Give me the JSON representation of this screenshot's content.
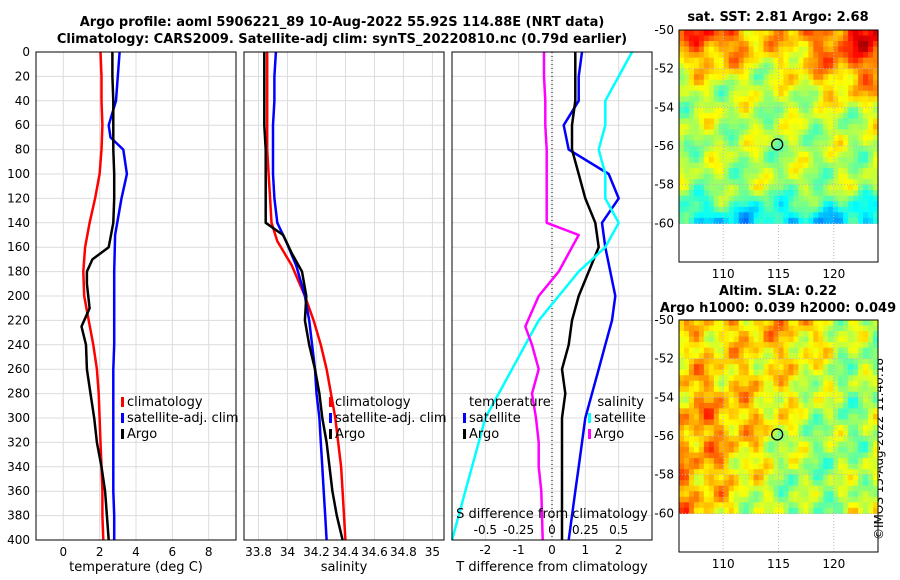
{
  "titles": {
    "line1": "Argo profile: aoml 5906221_89 10-Aug-2022 55.92S 114.88E (NRT data)",
    "line2": "Climatology: CARS2009. Satellite-adj clim: synTS_20220810.nc (0.79d earlier)",
    "sst": "sat. SST: 2.81 Argo: 2.68",
    "sla1": "Altim. SLA: 0.22",
    "sla2": "Argo h1000: 0.039 h2000: 0.049"
  },
  "watermark": "©IMOS 15-Aug-2022 11:40:18",
  "colors": {
    "climatology": "#ff0000",
    "satellite": "#0000ff",
    "argo": "#000000",
    "sal_satellite": "#00ffff",
    "sal_argo": "#ff00ff"
  },
  "chart_data": [
    {
      "type": "line",
      "name": "temperature",
      "xlabel": "temperature (deg C)",
      "ylabel": "",
      "xlim": [
        -1.5,
        9.5
      ],
      "ylim": [
        0,
        400
      ],
      "xticks": [
        "0",
        "2",
        "4",
        "6",
        "8"
      ],
      "xtick_values": [
        0,
        2,
        4,
        6,
        8
      ],
      "yticks": [
        "0",
        "20",
        "40",
        "60",
        "80",
        "100",
        "120",
        "140",
        "160",
        "180",
        "200",
        "220",
        "240",
        "260",
        "280",
        "300",
        "320",
        "340",
        "360",
        "380",
        "400"
      ],
      "legend": [
        "climatology",
        "satellite-adj. clim",
        "Argo"
      ],
      "series": [
        {
          "name": "climatology",
          "x": [
            2.05,
            2.1,
            2.1,
            2.15,
            2.1,
            2.0,
            1.75,
            1.45,
            1.2,
            1.1,
            1.15,
            1.4,
            1.65,
            1.85,
            1.95,
            2.0,
            2.05,
            2.1,
            2.15,
            2.15,
            2.2
          ],
          "y": [
            0,
            20,
            40,
            60,
            80,
            100,
            120,
            140,
            160,
            180,
            200,
            220,
            240,
            260,
            280,
            300,
            320,
            340,
            360,
            380,
            400
          ]
        },
        {
          "name": "satellite-adj. clim",
          "x": [
            3.1,
            3.0,
            2.9,
            2.5,
            2.6,
            3.3,
            3.5,
            3.2,
            2.85,
            2.8,
            2.8,
            2.8,
            2.8,
            2.75,
            2.75,
            2.75,
            2.75,
            2.75,
            2.75,
            2.8,
            2.8
          ],
          "y": [
            0,
            20,
            40,
            60,
            70,
            80,
            100,
            120,
            150,
            180,
            200,
            220,
            240,
            260,
            280,
            300,
            320,
            340,
            360,
            380,
            400
          ]
        },
        {
          "name": "Argo",
          "x": [
            2.7,
            2.7,
            2.75,
            2.75,
            2.75,
            2.8,
            2.8,
            2.75,
            2.5,
            1.6,
            1.3,
            1.3,
            1.45,
            1.0,
            1.25,
            1.3,
            1.5,
            1.7,
            1.85,
            2.1,
            2.3,
            2.4,
            2.5
          ],
          "y": [
            0,
            20,
            40,
            60,
            80,
            100,
            120,
            140,
            160,
            170,
            180,
            190,
            210,
            225,
            240,
            260,
            280,
            300,
            320,
            340,
            360,
            380,
            400
          ]
        }
      ]
    },
    {
      "type": "line",
      "name": "salinity",
      "xlabel": "salinity",
      "ylabel": "",
      "xlim": [
        33.7,
        35.08
      ],
      "ylim": [
        0,
        400
      ],
      "xticks": [
        "33.8",
        "34",
        "34.2",
        "34.4",
        "34.6",
        "34.8",
        "35"
      ],
      "xtick_values": [
        33.8,
        34.0,
        34.2,
        34.4,
        34.6,
        34.8,
        35.0
      ],
      "legend": [
        "climatology",
        "satellite-adj. clim",
        "Argo"
      ],
      "series": [
        {
          "name": "climatology",
          "x": [
            33.86,
            33.86,
            33.86,
            33.86,
            33.86,
            33.87,
            33.88,
            33.89,
            33.93,
            34.03,
            34.12,
            34.18,
            34.23,
            34.27,
            34.3,
            34.33,
            34.35,
            34.37,
            34.38,
            34.39,
            34.4
          ],
          "y": [
            0,
            20,
            40,
            60,
            80,
            100,
            120,
            140,
            155,
            175,
            200,
            220,
            240,
            260,
            280,
            300,
            320,
            340,
            360,
            380,
            400
          ]
        },
        {
          "name": "satellite-adj. clim",
          "x": [
            33.92,
            33.91,
            33.91,
            33.9,
            33.9,
            33.9,
            33.91,
            33.93,
            33.99,
            34.06,
            34.12,
            34.15,
            34.17,
            34.19,
            34.2,
            34.22,
            34.23,
            34.24,
            34.25,
            34.26,
            34.27
          ],
          "y": [
            0,
            20,
            40,
            60,
            80,
            100,
            120,
            140,
            155,
            175,
            200,
            220,
            240,
            260,
            280,
            300,
            320,
            340,
            360,
            380,
            400
          ]
        },
        {
          "name": "Argo",
          "x": [
            33.84,
            33.84,
            33.84,
            33.84,
            33.85,
            33.85,
            33.85,
            33.85,
            33.97,
            34.03,
            34.1,
            34.13,
            34.12,
            34.15,
            34.19,
            34.22,
            34.24,
            34.27,
            34.29,
            34.31,
            34.34,
            34.36,
            34.38
          ],
          "y": [
            0,
            20,
            40,
            60,
            80,
            100,
            120,
            140,
            150,
            165,
            180,
            200,
            220,
            240,
            260,
            280,
            300,
            320,
            340,
            360,
            380,
            390,
            400
          ]
        }
      ]
    },
    {
      "type": "line",
      "name": "difference from climatology",
      "xlabel": "T difference from climatology",
      "x2label": "S difference from climatology",
      "ylabel": "",
      "xlim": [
        -3,
        3
      ],
      "ylim": [
        0,
        400
      ],
      "xticks": [
        "-2",
        "-1",
        "0",
        "1",
        "2"
      ],
      "xtick_values": [
        -2,
        -1,
        0,
        1,
        2
      ],
      "x2ticks": [
        "-0.5",
        "-0.25",
        "0",
        "0.25",
        "0.5"
      ],
      "x2tick_values": [
        -0.5,
        -0.25,
        0,
        0.25,
        0.5
      ],
      "legend_temperature": {
        "title": "temperature",
        "items": [
          "satellite",
          "Argo"
        ]
      },
      "legend_salinity": {
        "title": "salinity",
        "items": [
          "satellite",
          "Argo"
        ]
      },
      "series": [
        {
          "name": "temperature satellite",
          "x": [
            0.9,
            0.8,
            0.8,
            0.35,
            0.5,
            1.7,
            2.0,
            1.5,
            1.6,
            1.75,
            1.9,
            1.8,
            1.6,
            1.4,
            1.2,
            1.0,
            0.9,
            0.8,
            0.7,
            0.6,
            0.5
          ],
          "y": [
            0,
            20,
            40,
            60,
            80,
            100,
            120,
            140,
            160,
            180,
            200,
            220,
            240,
            260,
            280,
            300,
            320,
            340,
            360,
            380,
            400
          ]
        },
        {
          "name": "temperature Argo",
          "x": [
            0.7,
            0.7,
            0.7,
            0.6,
            0.6,
            0.8,
            1.0,
            1.3,
            1.4,
            1.1,
            0.8,
            0.6,
            0.5,
            0.3,
            0.4,
            0.3,
            0.3,
            0.3,
            0.3,
            0.3,
            0.3
          ],
          "y": [
            0,
            20,
            40,
            60,
            80,
            100,
            120,
            140,
            160,
            180,
            200,
            220,
            240,
            260,
            280,
            300,
            320,
            340,
            360,
            380,
            400
          ]
        },
        {
          "name": "salinity satellite",
          "x": [
            0.6,
            0.5,
            0.4,
            0.4,
            0.35,
            0.4,
            0.4,
            0.5,
            0.4,
            0.2,
            0.05,
            -0.1,
            -0.2,
            -0.3,
            -0.4,
            -0.5,
            -0.55,
            -0.6,
            -0.65,
            -0.7,
            -0.75
          ],
          "y": [
            0,
            20,
            40,
            60,
            80,
            100,
            120,
            140,
            160,
            180,
            200,
            220,
            240,
            260,
            280,
            300,
            320,
            340,
            360,
            380,
            400
          ]
        },
        {
          "name": "salinity Argo",
          "x": [
            -0.06,
            -0.06,
            -0.05,
            -0.05,
            -0.04,
            -0.04,
            -0.04,
            -0.04,
            0.2,
            0.15,
            0.05,
            -0.1,
            -0.2,
            -0.15,
            -0.1,
            -0.15,
            -0.12,
            -0.1,
            -0.1,
            -0.08,
            -0.07
          ],
          "y": [
            0,
            20,
            40,
            60,
            80,
            100,
            120,
            140,
            150,
            160,
            180,
            200,
            225,
            240,
            260,
            280,
            300,
            320,
            340,
            360,
            400
          ]
        }
      ]
    },
    {
      "type": "heatmap",
      "name": "satellite SST map",
      "title": "sat. SST: 2.81 Argo: 2.68",
      "xticks": [
        "110",
        "115",
        "120"
      ],
      "xtick_values": [
        110,
        115,
        120
      ],
      "yticks": [
        "-50",
        "-52",
        "-54",
        "-56",
        "-58",
        "-60"
      ],
      "ytick_values": [
        -50,
        -52,
        -54,
        -56,
        -58,
        -60
      ],
      "xlim": [
        106,
        124
      ],
      "ylim": [
        -62,
        -50
      ],
      "data_ylim": [
        -60,
        -50
      ],
      "marker": {
        "lon": 114.88,
        "lat": -55.92
      }
    },
    {
      "type": "heatmap",
      "name": "altimetry SLA map",
      "title": "Altim. SLA: 0.22",
      "xticks": [
        "110",
        "115",
        "120"
      ],
      "xtick_values": [
        110,
        115,
        120
      ],
      "yticks": [
        "-50",
        "-52",
        "-54",
        "-56",
        "-58",
        "-60"
      ],
      "ytick_values": [
        -50,
        -52,
        -54,
        -56,
        -58,
        -60
      ],
      "xlim": [
        106,
        124
      ],
      "ylim": [
        -62,
        -50
      ],
      "data_ylim": [
        -60,
        -50
      ],
      "marker": {
        "lon": 114.88,
        "lat": -55.92
      }
    }
  ]
}
